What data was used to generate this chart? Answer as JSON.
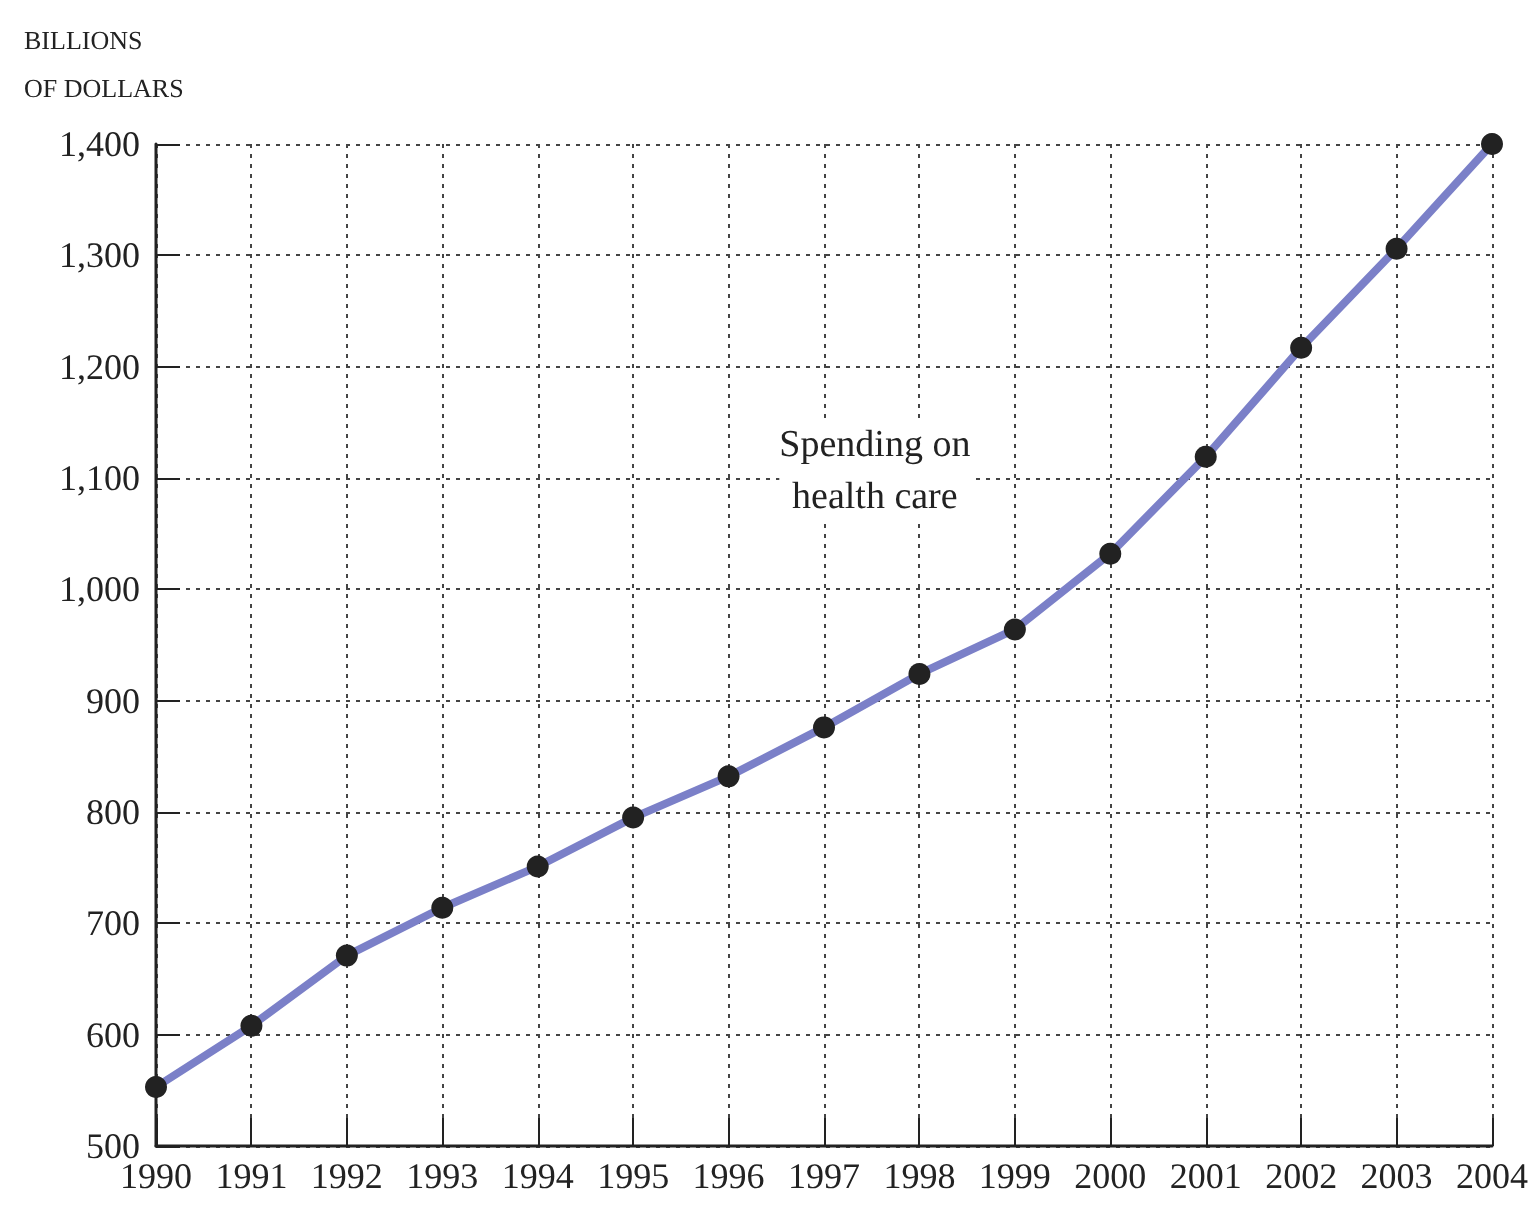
{
  "chart_data": {
    "type": "line",
    "ylabel": "BILLIONS OF DOLLARS",
    "x": [
      1990,
      1991,
      1992,
      1993,
      1994,
      1995,
      1996,
      1997,
      1998,
      1999,
      2000,
      2001,
      2002,
      2003,
      2004
    ],
    "series": [
      {
        "name": "Spending on health care",
        "color": "#7b80c8",
        "values": [
          553,
          608,
          671,
          714,
          751,
          795,
          832,
          876,
          924,
          964,
          1032,
          1119,
          1217,
          1306,
          1400
        ]
      }
    ],
    "xlim": [
      1990,
      2004
    ],
    "xticks": [
      1990,
      1991,
      1992,
      1993,
      1994,
      1995,
      1996,
      1997,
      1998,
      1999,
      2000,
      2001,
      2002,
      2003,
      2004
    ],
    "ylim": [
      500,
      1400
    ],
    "yticks": [
      {
        "value": 500,
        "label": "500"
      },
      {
        "value": 600,
        "label": "600"
      },
      {
        "value": 700,
        "label": "700"
      },
      {
        "value": 800,
        "label": "800"
      },
      {
        "value": 900,
        "label": "900"
      },
      {
        "value": 1000,
        "label": "1,000"
      },
      {
        "value": 1100,
        "label": "1,100"
      },
      {
        "value": 1200,
        "label": "1,200"
      },
      {
        "value": 1300,
        "label": "1,300"
      },
      {
        "value": 1400,
        "label": "1,400"
      }
    ],
    "grid": true,
    "marker": "circle",
    "line_style": "solid",
    "legend": false
  }
}
